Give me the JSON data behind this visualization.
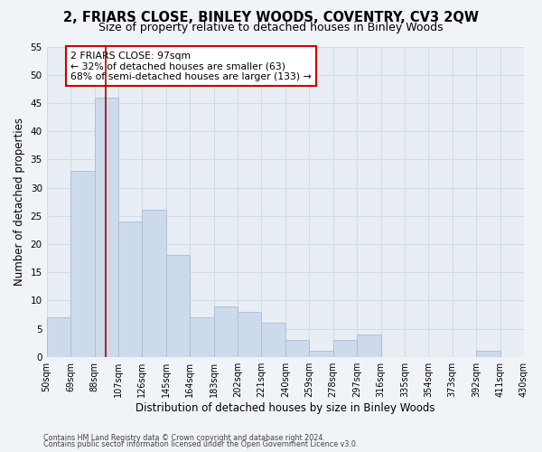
{
  "title": "2, FRIARS CLOSE, BINLEY WOODS, COVENTRY, CV3 2QW",
  "subtitle": "Size of property relative to detached houses in Binley Woods",
  "xlabel": "Distribution of detached houses by size in Binley Woods",
  "ylabel": "Number of detached properties",
  "bar_edges": [
    50,
    69,
    88,
    107,
    126,
    145,
    164,
    183,
    202,
    221,
    240,
    259,
    278,
    297,
    316,
    335,
    354,
    373,
    392,
    411,
    430
  ],
  "bar_heights": [
    7,
    33,
    46,
    24,
    26,
    18,
    7,
    9,
    8,
    6,
    3,
    1,
    3,
    4,
    0,
    0,
    0,
    0,
    1,
    0
  ],
  "bar_color": "#ccdaeb",
  "bar_edgecolor": "#aabdd6",
  "property_line_x": 97,
  "property_line_color": "#aa0000",
  "annotation_text": "2 FRIARS CLOSE: 97sqm\n← 32% of detached houses are smaller (63)\n68% of semi-detached houses are larger (133) →",
  "annotation_box_facecolor": "#ffffff",
  "annotation_box_edgecolor": "#cc0000",
  "ylim": [
    0,
    55
  ],
  "yticks": [
    0,
    5,
    10,
    15,
    20,
    25,
    30,
    35,
    40,
    45,
    50,
    55
  ],
  "tick_labels": [
    "50sqm",
    "69sqm",
    "88sqm",
    "107sqm",
    "126sqm",
    "145sqm",
    "164sqm",
    "183sqm",
    "202sqm",
    "221sqm",
    "240sqm",
    "259sqm",
    "278sqm",
    "297sqm",
    "316sqm",
    "335sqm",
    "354sqm",
    "373sqm",
    "392sqm",
    "411sqm",
    "430sqm"
  ],
  "footer_line1": "Contains HM Land Registry data © Crown copyright and database right 2024.",
  "footer_line2": "Contains public sector information licensed under the Open Government Licence v3.0.",
  "bg_color": "#f0f4f8",
  "plot_bg_color": "#e8eef4",
  "grid_color": "#d0dce8",
  "title_fontsize": 10.5,
  "subtitle_fontsize": 9
}
